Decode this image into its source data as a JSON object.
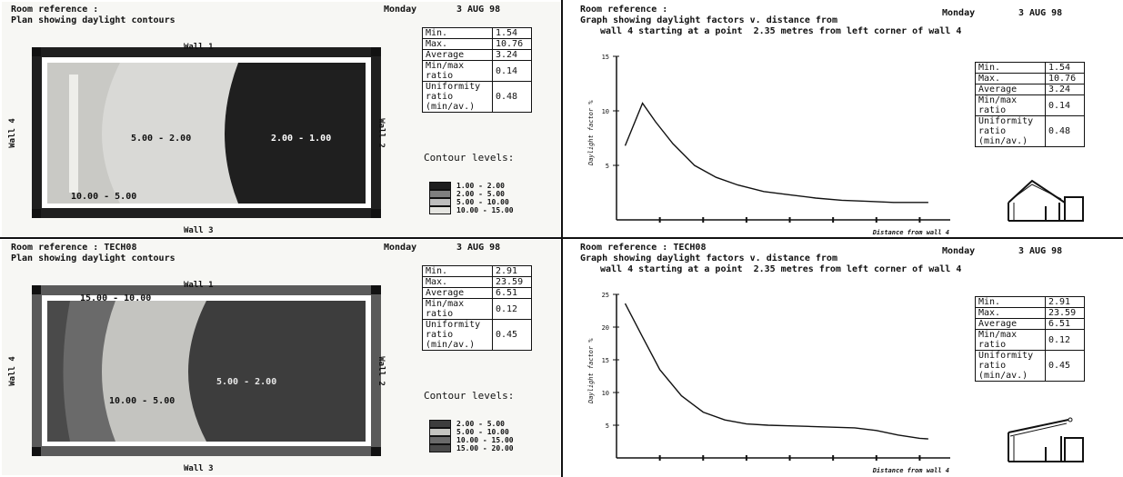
{
  "colors": {
    "dark": "#1f1f1f",
    "medium": "#8d8d8d",
    "light": "#d6d6d6",
    "paper": "#f7f7f4"
  },
  "plans": [
    {
      "room_label": "Room reference :",
      "day": "Monday",
      "date": "3 AUG 98",
      "subtitle": "Plan showing daylight contours",
      "walls": {
        "top": "Wall 1",
        "left": "Wall 4",
        "right": "Wall 2",
        "bottom": "Wall 3"
      },
      "zones": [
        "5.00 - 2.00",
        "2.00 - 1.00",
        "10.00 - 5.00"
      ],
      "contour_title": "Contour levels:",
      "contour_legend": [
        "1.00 - 2.00",
        "2.00 - 5.00",
        "5.00 - 10.00",
        "10.00 - 15.00"
      ],
      "stats": [
        {
          "label": "Min.",
          "value": "1.54"
        },
        {
          "label": "Max.",
          "value": "10.76"
        },
        {
          "label": "Average",
          "value": "3.24"
        },
        {
          "label": "Min/max ratio",
          "value": "0.14"
        },
        {
          "label": "Uniformity ratio (min/av.)",
          "value": "0.48"
        }
      ]
    },
    {
      "room_label": "Room reference : TECH08",
      "day": "Monday",
      "date": "3 AUG 98",
      "subtitle": "Plan showing daylight contours",
      "walls": {
        "top": "Wall 1",
        "left": "Wall 4",
        "right": "Wall 2",
        "bottom": "Wall 3"
      },
      "zones": [
        "5.00 - 2.00",
        "10.00 - 5.00",
        "15.00 - 10.00"
      ],
      "contour_title": "Contour levels:",
      "contour_legend": [
        "2.00 - 5.00",
        "5.00 - 10.00",
        "10.00 - 15.00",
        "15.00 - 20.00"
      ],
      "stats": [
        {
          "label": "Min.",
          "value": "2.91"
        },
        {
          "label": "Max.",
          "value": "23.59"
        },
        {
          "label": "Average",
          "value": "6.51"
        },
        {
          "label": "Min/max ratio",
          "value": "0.12"
        },
        {
          "label": "Uniformity ratio (min/av.)",
          "value": "0.45"
        }
      ]
    }
  ],
  "graphs": [
    {
      "room_label": "Room reference :",
      "day": "Monday",
      "date": "3 AUG 98",
      "title_line1": "Graph showing daylight factors v. distance from",
      "title_line2": "wall 4 starting at a point  2.35 metres from left corner of wall 4",
      "stats": [
        {
          "label": "Min.",
          "value": "1.54"
        },
        {
          "label": "Max.",
          "value": "10.76"
        },
        {
          "label": "Average",
          "value": "3.24"
        },
        {
          "label": "Min/max ratio",
          "value": "0.14"
        },
        {
          "label": "Uniformity ratio (min/av.)",
          "value": "0.48"
        }
      ]
    },
    {
      "room_label": "Room reference : TECH08",
      "day": "Monday",
      "date": "3 AUG 98",
      "title_line1": "Graph showing daylight factors v. distance from",
      "title_line2": "wall 4 starting at a point  2.35 metres from left corner of wall 4",
      "stats": [
        {
          "label": "Min.",
          "value": "2.91"
        },
        {
          "label": "Max.",
          "value": "23.59"
        },
        {
          "label": "Average",
          "value": "6.51"
        },
        {
          "label": "Min/max ratio",
          "value": "0.12"
        },
        {
          "label": "Uniformity ratio (min/av.)",
          "value": "0.45"
        }
      ]
    }
  ],
  "chart_data": [
    {
      "type": "line",
      "xlabel": "Distance from wall 4",
      "ylabel": "Daylight factor %",
      "xlim": [
        0,
        7.6
      ],
      "ylim": [
        0,
        15
      ],
      "y_ticks": [
        "15",
        "10",
        "5"
      ],
      "x": [
        0.2,
        0.6,
        0.9,
        1.3,
        1.8,
        2.3,
        2.8,
        3.4,
        4.0,
        4.6,
        5.2,
        5.8,
        6.4,
        7.2
      ],
      "values": [
        6.8,
        10.7,
        9.0,
        7.0,
        5.0,
        3.9,
        3.2,
        2.6,
        2.3,
        2.0,
        1.8,
        1.7,
        1.6,
        1.6
      ]
    },
    {
      "type": "line",
      "xlabel": "Distance from wall 4",
      "ylabel": "Daylight factor %",
      "xlim": [
        0,
        7.6
      ],
      "ylim": [
        0,
        25
      ],
      "y_ticks": [
        "25",
        "20",
        "15",
        "10",
        "5"
      ],
      "x": [
        0.2,
        0.6,
        1.0,
        1.5,
        2.0,
        2.5,
        3.0,
        3.5,
        4.0,
        4.5,
        5.0,
        5.5,
        6.0,
        6.5,
        7.0,
        7.2
      ],
      "values": [
        23.6,
        18.5,
        13.5,
        9.5,
        7.0,
        5.8,
        5.2,
        5.0,
        4.9,
        4.8,
        4.7,
        4.6,
        4.2,
        3.5,
        3.0,
        2.9
      ]
    }
  ]
}
